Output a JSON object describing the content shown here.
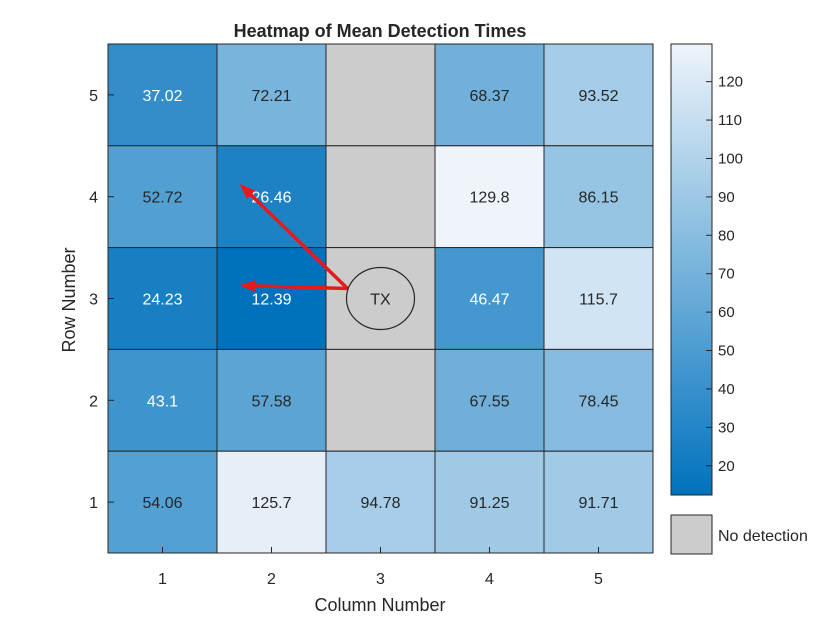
{
  "chart_data": {
    "type": "heatmap",
    "title": "Heatmap of Mean Detection Times",
    "xlabel": "Column Number",
    "ylabel": "Row Number",
    "columns": [
      1,
      2,
      3,
      4,
      5
    ],
    "rows": [
      5,
      4,
      3,
      2,
      1
    ],
    "values": [
      [
        37.02,
        72.21,
        null,
        68.37,
        93.52
      ],
      [
        52.72,
        26.46,
        null,
        129.8,
        86.15
      ],
      [
        24.23,
        12.39,
        "TX",
        46.47,
        115.7
      ],
      [
        43.1,
        57.58,
        null,
        67.55,
        78.45
      ],
      [
        54.06,
        125.7,
        94.78,
        91.25,
        91.71
      ]
    ],
    "transmitter": {
      "label": "TX",
      "row": 3,
      "column": 3
    },
    "arrows": [
      {
        "from": {
          "row": 3,
          "column": 3
        },
        "to": {
          "row": 4,
          "column": 2
        }
      },
      {
        "from": {
          "row": 3,
          "column": 3
        },
        "to": {
          "row": 3,
          "column": 2
        }
      }
    ],
    "colorbar": {
      "min": 12.39,
      "max": 129.8,
      "ticks": [
        20,
        30,
        40,
        50,
        60,
        70,
        80,
        90,
        100,
        110,
        120
      ],
      "low_color": "#0072bd",
      "high_color": "#eef4fa"
    },
    "no_detection": {
      "label": "No detection",
      "color": "#cccccc"
    },
    "arrow_color": "#e41a1c"
  }
}
